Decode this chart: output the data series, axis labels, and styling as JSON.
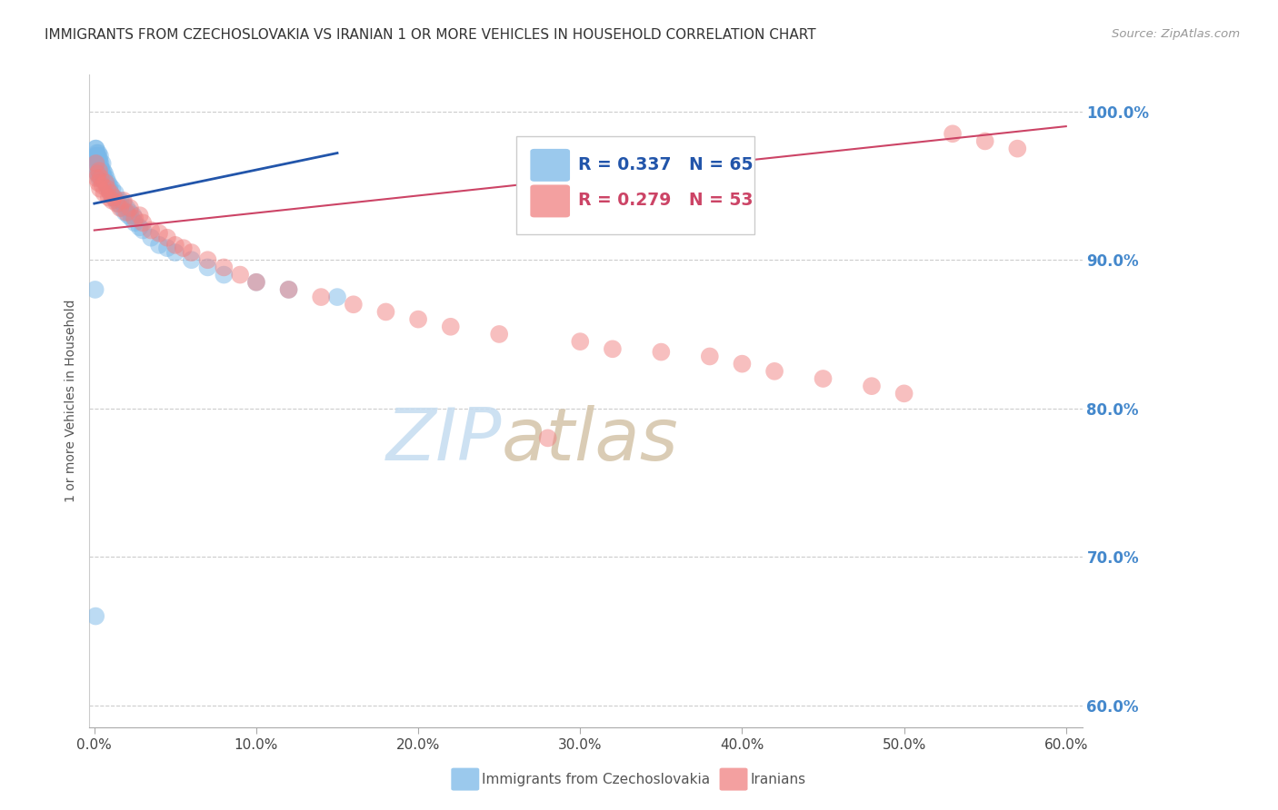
{
  "title": "IMMIGRANTS FROM CZECHOSLOVAKIA VS IRANIAN 1 OR MORE VEHICLES IN HOUSEHOLD CORRELATION CHART",
  "source": "Source: ZipAtlas.com",
  "ylabel": "1 or more Vehicles in Household",
  "legend_label_blue": "Immigrants from Czechoslovakia",
  "legend_label_pink": "Iranians",
  "blue_color": "#7ab8e8",
  "pink_color": "#f08080",
  "blue_line_color": "#2255aa",
  "pink_line_color": "#cc4466",
  "right_axis_color": "#4488cc",
  "grid_color": "#cccccc",
  "watermark_zip_color": "#c8ddf0",
  "watermark_atlas_color": "#d8c8b0",
  "blue_x": [
    0.05,
    0.08,
    0.1,
    0.1,
    0.12,
    0.15,
    0.15,
    0.18,
    0.2,
    0.2,
    0.22,
    0.25,
    0.25,
    0.28,
    0.3,
    0.3,
    0.32,
    0.35,
    0.35,
    0.38,
    0.4,
    0.4,
    0.45,
    0.45,
    0.5,
    0.5,
    0.55,
    0.6,
    0.65,
    0.7,
    0.75,
    0.8,
    0.85,
    0.9,
    0.95,
    1.0,
    1.1,
    1.2,
    1.3,
    1.4,
    1.5,
    1.6,
    1.7,
    1.8,
    1.9,
    2.0,
    2.1,
    2.2,
    2.3,
    2.4,
    2.5,
    2.8,
    3.0,
    3.5,
    4.0,
    4.5,
    5.0,
    6.0,
    7.0,
    8.0,
    10.0,
    12.0,
    15.0,
    0.05,
    0.08
  ],
  "blue_y": [
    0.97,
    0.975,
    0.96,
    0.975,
    0.968,
    0.972,
    0.965,
    0.97,
    0.965,
    0.958,
    0.97,
    0.965,
    0.972,
    0.96,
    0.968,
    0.955,
    0.965,
    0.97,
    0.96,
    0.965,
    0.958,
    0.962,
    0.96,
    0.955,
    0.965,
    0.958,
    0.96,
    0.955,
    0.958,
    0.952,
    0.955,
    0.95,
    0.952,
    0.948,
    0.95,
    0.945,
    0.948,
    0.942,
    0.945,
    0.94,
    0.938,
    0.94,
    0.935,
    0.938,
    0.932,
    0.935,
    0.93,
    0.932,
    0.928,
    0.93,
    0.925,
    0.922,
    0.92,
    0.915,
    0.91,
    0.908,
    0.905,
    0.9,
    0.895,
    0.89,
    0.885,
    0.88,
    0.875,
    0.88,
    0.66
  ],
  "pink_x": [
    0.1,
    0.15,
    0.2,
    0.25,
    0.3,
    0.35,
    0.4,
    0.5,
    0.6,
    0.7,
    0.8,
    0.9,
    1.0,
    1.1,
    1.2,
    1.4,
    1.6,
    1.8,
    2.0,
    2.2,
    2.5,
    2.8,
    3.0,
    3.5,
    4.0,
    4.5,
    5.0,
    5.5,
    6.0,
    7.0,
    8.0,
    9.0,
    10.0,
    12.0,
    14.0,
    16.0,
    18.0,
    20.0,
    22.0,
    25.0,
    28.0,
    30.0,
    32.0,
    35.0,
    38.0,
    40.0,
    42.0,
    45.0,
    48.0,
    50.0,
    53.0,
    55.0,
    57.0
  ],
  "pink_y": [
    0.965,
    0.955,
    0.958,
    0.952,
    0.96,
    0.948,
    0.955,
    0.95,
    0.945,
    0.952,
    0.948,
    0.942,
    0.945,
    0.94,
    0.942,
    0.938,
    0.935,
    0.94,
    0.932,
    0.935,
    0.928,
    0.93,
    0.925,
    0.92,
    0.918,
    0.915,
    0.91,
    0.908,
    0.905,
    0.9,
    0.895,
    0.89,
    0.885,
    0.88,
    0.875,
    0.87,
    0.865,
    0.86,
    0.855,
    0.85,
    0.78,
    0.845,
    0.84,
    0.838,
    0.835,
    0.83,
    0.825,
    0.82,
    0.815,
    0.81,
    0.985,
    0.98,
    0.975
  ],
  "blue_line_x": [
    0.0,
    15.0
  ],
  "blue_line_y": [
    0.938,
    0.972
  ],
  "pink_line_x": [
    0.0,
    60.0
  ],
  "pink_line_y": [
    0.92,
    0.99
  ],
  "xlim_min": -0.3,
  "xlim_max": 61.0,
  "ylim_min": 0.585,
  "ylim_max": 1.025,
  "yticks": [
    0.6,
    0.7,
    0.8,
    0.9,
    1.0
  ],
  "ytick_labels_right": [
    "60.0%",
    "70.0%",
    "80.0%",
    "90.0%",
    "100.0%"
  ],
  "xticks": [
    0.0,
    10.0,
    20.0,
    30.0,
    40.0,
    50.0,
    60.0
  ],
  "xtick_labels": [
    "0.0%",
    "10.0%",
    "20.0%",
    "30.0%",
    "40.0%",
    "50.0%",
    "60.0%"
  ]
}
